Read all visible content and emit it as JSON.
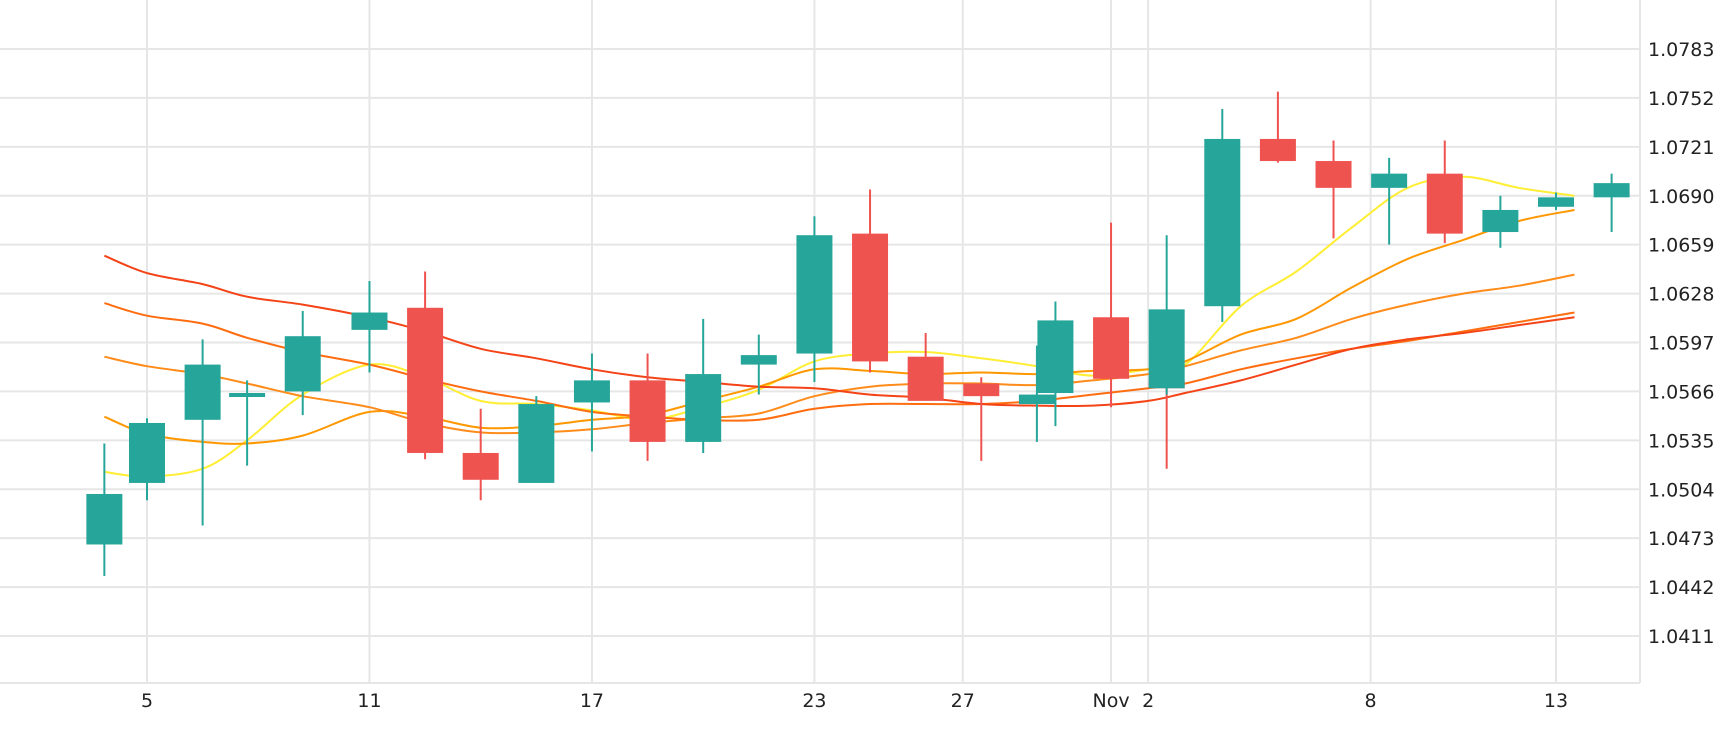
{
  "chart_data": {
    "type": "candlestick",
    "title": "",
    "xlabel": "",
    "ylabel": "",
    "ylim": [
      1.038,
      1.0814
    ],
    "y_ticks": [
      "1.0411",
      "1.0442",
      "1.0473",
      "1.0504",
      "1.0535",
      "1.0566",
      "1.0597",
      "1.0628",
      "1.0659",
      "1.0690",
      "1.0721",
      "1.0752",
      "1.0783"
    ],
    "x_ticks": [
      {
        "label": "5",
        "day": 5
      },
      {
        "label": "11",
        "day": 11
      },
      {
        "label": "17",
        "day": 17
      },
      {
        "label": "23",
        "day": 23
      },
      {
        "label": "27",
        "day": 27
      },
      {
        "label": "Nov",
        "day": 31
      },
      {
        "label": "2",
        "day": 32
      },
      {
        "label": "8",
        "day": 38
      },
      {
        "label": "13",
        "day": 43
      }
    ],
    "grid": true,
    "up_color": "#26a69a",
    "down_color": "#ef5350",
    "candles": [
      {
        "day": 3.85,
        "o": 1.0469,
        "h": 1.0533,
        "l": 1.0449,
        "c": 1.0501
      },
      {
        "day": 5.0,
        "o": 1.0508,
        "h": 1.0549,
        "l": 1.0497,
        "c": 1.0546
      },
      {
        "day": 6.5,
        "o": 1.0548,
        "h": 1.0599,
        "l": 1.0481,
        "c": 1.0583
      },
      {
        "day": 7.7,
        "o": 1.0563,
        "h": 1.0573,
        "l": 1.0519,
        "c": 1.0565
      },
      {
        "day": 9.2,
        "o": 1.0566,
        "h": 1.0617,
        "l": 1.0551,
        "c": 1.0601
      },
      {
        "day": 11.0,
        "o": 1.0605,
        "h": 1.0636,
        "l": 1.0578,
        "c": 1.0616
      },
      {
        "day": 12.5,
        "o": 1.0619,
        "h": 1.0642,
        "l": 1.0523,
        "c": 1.0527
      },
      {
        "day": 14.0,
        "o": 1.0527,
        "h": 1.0555,
        "l": 1.0497,
        "c": 1.051
      },
      {
        "day": 15.5,
        "o": 1.0508,
        "h": 1.0563,
        "l": 1.0508,
        "c": 1.0558
      },
      {
        "day": 17.0,
        "o": 1.0559,
        "h": 1.059,
        "l": 1.0528,
        "c": 1.0573
      },
      {
        "day": 18.5,
        "o": 1.0573,
        "h": 1.059,
        "l": 1.0522,
        "c": 1.0534
      },
      {
        "day": 20.0,
        "o": 1.0534,
        "h": 1.0612,
        "l": 1.0527,
        "c": 1.0577
      },
      {
        "day": 21.5,
        "o": 1.0583,
        "h": 1.0602,
        "l": 1.0564,
        "c": 1.0589
      },
      {
        "day": 23.0,
        "o": 1.059,
        "h": 1.0677,
        "l": 1.0572,
        "c": 1.0665
      },
      {
        "day": 24.5,
        "o": 1.0666,
        "h": 1.0694,
        "l": 1.0578,
        "c": 1.0585
      },
      {
        "day": 26.0,
        "o": 1.0588,
        "h": 1.0603,
        "l": 1.0562,
        "c": 1.056
      },
      {
        "day": 27.5,
        "o": 1.0571,
        "h": 1.0575,
        "l": 1.0522,
        "c": 1.0563
      },
      {
        "day": 29.0,
        "o": 1.0558,
        "h": 1.0595,
        "l": 1.0534,
        "c": 1.0564
      },
      {
        "day": 29.5,
        "o": 1.0565,
        "h": 1.0623,
        "l": 1.0544,
        "c": 1.0611
      },
      {
        "day": 31.0,
        "o": 1.0613,
        "h": 1.0673,
        "l": 1.0556,
        "c": 1.0574
      },
      {
        "day": 32.5,
        "o": 1.0573,
        "h": 1.0582,
        "l": 1.0517,
        "c": 1.0568
      },
      {
        "day": 32.5,
        "o": 1.0568,
        "h": 1.0665,
        "l": 1.0564,
        "c": 1.0618
      },
      {
        "day": 34.0,
        "o": 1.062,
        "h": 1.0745,
        "l": 1.061,
        "c": 1.0726
      },
      {
        "day": 35.5,
        "o": 1.0726,
        "h": 1.0756,
        "l": 1.0711,
        "c": 1.0712
      },
      {
        "day": 37.0,
        "o": 1.0712,
        "h": 1.0725,
        "l": 1.0663,
        "c": 1.0695
      },
      {
        "day": 38.5,
        "o": 1.0695,
        "h": 1.0714,
        "l": 1.0659,
        "c": 1.0704
      },
      {
        "day": 40.0,
        "o": 1.0704,
        "h": 1.0725,
        "l": 1.066,
        "c": 1.0666
      },
      {
        "day": 41.5,
        "o": 1.0667,
        "h": 1.069,
        "l": 1.0657,
        "c": 1.0681
      },
      {
        "day": 43.0,
        "o": 1.0683,
        "h": 1.0692,
        "l": 1.0681,
        "c": 1.0689
      },
      {
        "day": 44.5,
        "o": 1.0689,
        "h": 1.0704,
        "l": 1.0667,
        "c": 1.0698
      }
    ],
    "series": [
      {
        "color": "#ffee33",
        "x": [
          3.85,
          5.0,
          6.5,
          7.7,
          9.2,
          11.0,
          12.5,
          14.0,
          15.5,
          17.0,
          18.5,
          20.0,
          21.5,
          23.0,
          24.5,
          26.0,
          27.5,
          29.0,
          30.5,
          32.0,
          33.0,
          34.5,
          36.0,
          37.5,
          39.0,
          40.5,
          42.0,
          43.5
        ],
        "values": [
          1.0515,
          1.0512,
          1.0517,
          1.0535,
          1.0564,
          1.0583,
          1.0575,
          1.056,
          1.0558,
          1.0554,
          1.0548,
          1.0556,
          1.0567,
          1.0585,
          1.059,
          1.0591,
          1.0587,
          1.0582,
          1.0576,
          1.058,
          1.0583,
          1.062,
          1.0642,
          1.067,
          1.0695,
          1.0702,
          1.0695,
          1.069
        ]
      },
      {
        "color": "#ff9800",
        "x": [
          3.85,
          5.0,
          6.5,
          7.7,
          9.2,
          11.0,
          12.5,
          14.0,
          15.5,
          17.0,
          18.5,
          20.0,
          21.5,
          23.0,
          24.5,
          26.0,
          27.5,
          29.0,
          30.5,
          32.0,
          33.0,
          34.5,
          36.0,
          37.5,
          39.0,
          40.5,
          42.0,
          43.5
        ],
        "values": [
          1.055,
          1.0539,
          1.0534,
          1.0533,
          1.0538,
          1.0553,
          1.055,
          1.0543,
          1.0544,
          1.0548,
          1.0551,
          1.056,
          1.0569,
          1.058,
          1.0579,
          1.0577,
          1.0578,
          1.0577,
          1.0579,
          1.058,
          1.0585,
          1.0602,
          1.0612,
          1.0632,
          1.065,
          1.0662,
          1.0674,
          1.0681
        ]
      },
      {
        "color": "#ff8c1a",
        "x": [
          3.85,
          5.0,
          6.5,
          7.7,
          9.2,
          11.0,
          12.5,
          14.0,
          15.5,
          17.0,
          18.5,
          20.0,
          21.5,
          23.0,
          24.5,
          26.0,
          27.5,
          29.0,
          30.5,
          32.0,
          33.0,
          34.5,
          36.0,
          37.5,
          39.0,
          40.5,
          42.0,
          43.5
        ],
        "values": [
          1.0588,
          1.0582,
          1.0577,
          1.0571,
          1.0563,
          1.0556,
          1.0546,
          1.054,
          1.054,
          1.0542,
          1.0546,
          1.0549,
          1.0552,
          1.0563,
          1.0569,
          1.0571,
          1.0571,
          1.057,
          1.0573,
          1.0577,
          1.0582,
          1.0592,
          1.06,
          1.0612,
          1.0621,
          1.0628,
          1.0633,
          1.064
        ]
      },
      {
        "color": "#ff6d10",
        "x": [
          3.85,
          5.0,
          6.5,
          7.7,
          9.2,
          11.0,
          12.5,
          14.0,
          15.5,
          17.0,
          18.5,
          20.0,
          21.5,
          23.0,
          24.5,
          26.0,
          27.5,
          29.0,
          30.5,
          32.0,
          33.0,
          34.5,
          36.0,
          37.5,
          39.0,
          40.5,
          42.0,
          43.5
        ],
        "values": [
          1.0622,
          1.0614,
          1.0609,
          1.06,
          1.0591,
          1.0583,
          1.0574,
          1.0566,
          1.056,
          1.0553,
          1.055,
          1.0548,
          1.0548,
          1.0555,
          1.0558,
          1.0558,
          1.0558,
          1.056,
          1.0564,
          1.0568,
          1.0571,
          1.058,
          1.0587,
          1.0593,
          1.0598,
          1.0604,
          1.061,
          1.0616
        ]
      },
      {
        "color": "#f44316",
        "x": [
          3.85,
          5.0,
          6.5,
          7.7,
          9.2,
          11.0,
          12.5,
          14.0,
          15.5,
          17.0,
          18.5,
          20.0,
          21.5,
          23.0,
          24.5,
          26.0,
          27.5,
          29.0,
          30.5,
          32.0,
          33.0,
          34.5,
          36.0,
          37.5,
          39.0,
          40.5,
          42.0,
          43.5
        ],
        "values": [
          1.0652,
          1.0641,
          1.0634,
          1.0626,
          1.0621,
          1.0613,
          1.0604,
          1.0593,
          1.0587,
          1.058,
          1.0575,
          1.0572,
          1.0569,
          1.0568,
          1.0564,
          1.0562,
          1.0558,
          1.0557,
          1.0557,
          1.056,
          1.0565,
          1.0573,
          1.0583,
          1.0593,
          1.0599,
          1.0603,
          1.0608,
          1.0613
        ]
      }
    ]
  }
}
